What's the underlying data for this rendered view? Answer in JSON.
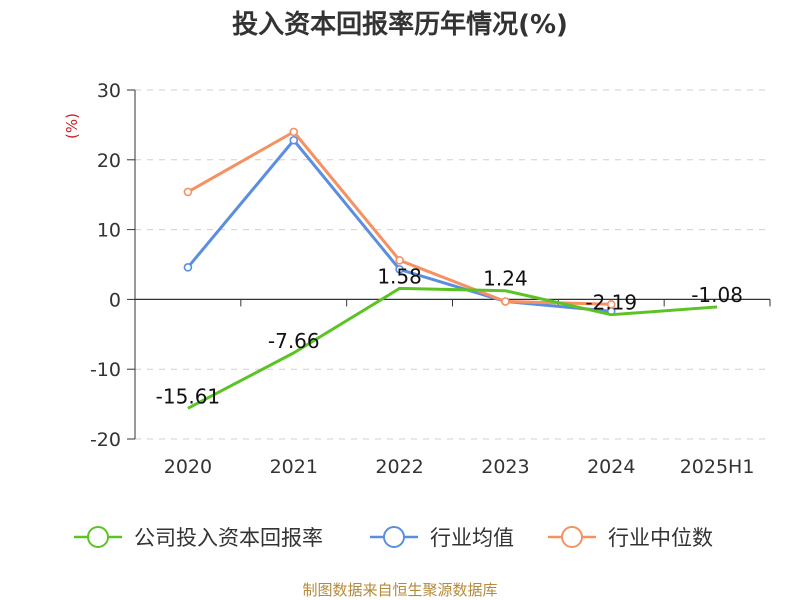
{
  "chart_data": {
    "type": "line",
    "title": "投入资本回报率历年情况(%)",
    "ylabel": "(%)",
    "xlabel": "",
    "categories": [
      "2020",
      "2021",
      "2022",
      "2023",
      "2024",
      "2025H1"
    ],
    "yticks": [
      -20,
      -10,
      0,
      10,
      20,
      30
    ],
    "ylim": [
      -20,
      30
    ],
    "grid": "horizontal-dashed",
    "legend_position": "bottom",
    "series": [
      {
        "name": "公司投入资本回报率",
        "color": "#5bc424",
        "values": [
          -15.61,
          -7.66,
          1.58,
          1.24,
          -2.19,
          -1.08
        ],
        "labels": [
          "-15.61",
          "-7.66",
          "1.58",
          "1.24",
          "-2.19",
          "-1.08"
        ]
      },
      {
        "name": "行业均值",
        "color": "#5b8ee0",
        "values": [
          4.6,
          22.8,
          4.3,
          -0.3,
          -1.7,
          null
        ]
      },
      {
        "name": "行业中位数",
        "color": "#f59162",
        "values": [
          15.4,
          24.0,
          5.6,
          -0.3,
          -0.7,
          null
        ]
      }
    ]
  },
  "footer": {
    "source": "制图数据来自恒生聚源数据库"
  }
}
